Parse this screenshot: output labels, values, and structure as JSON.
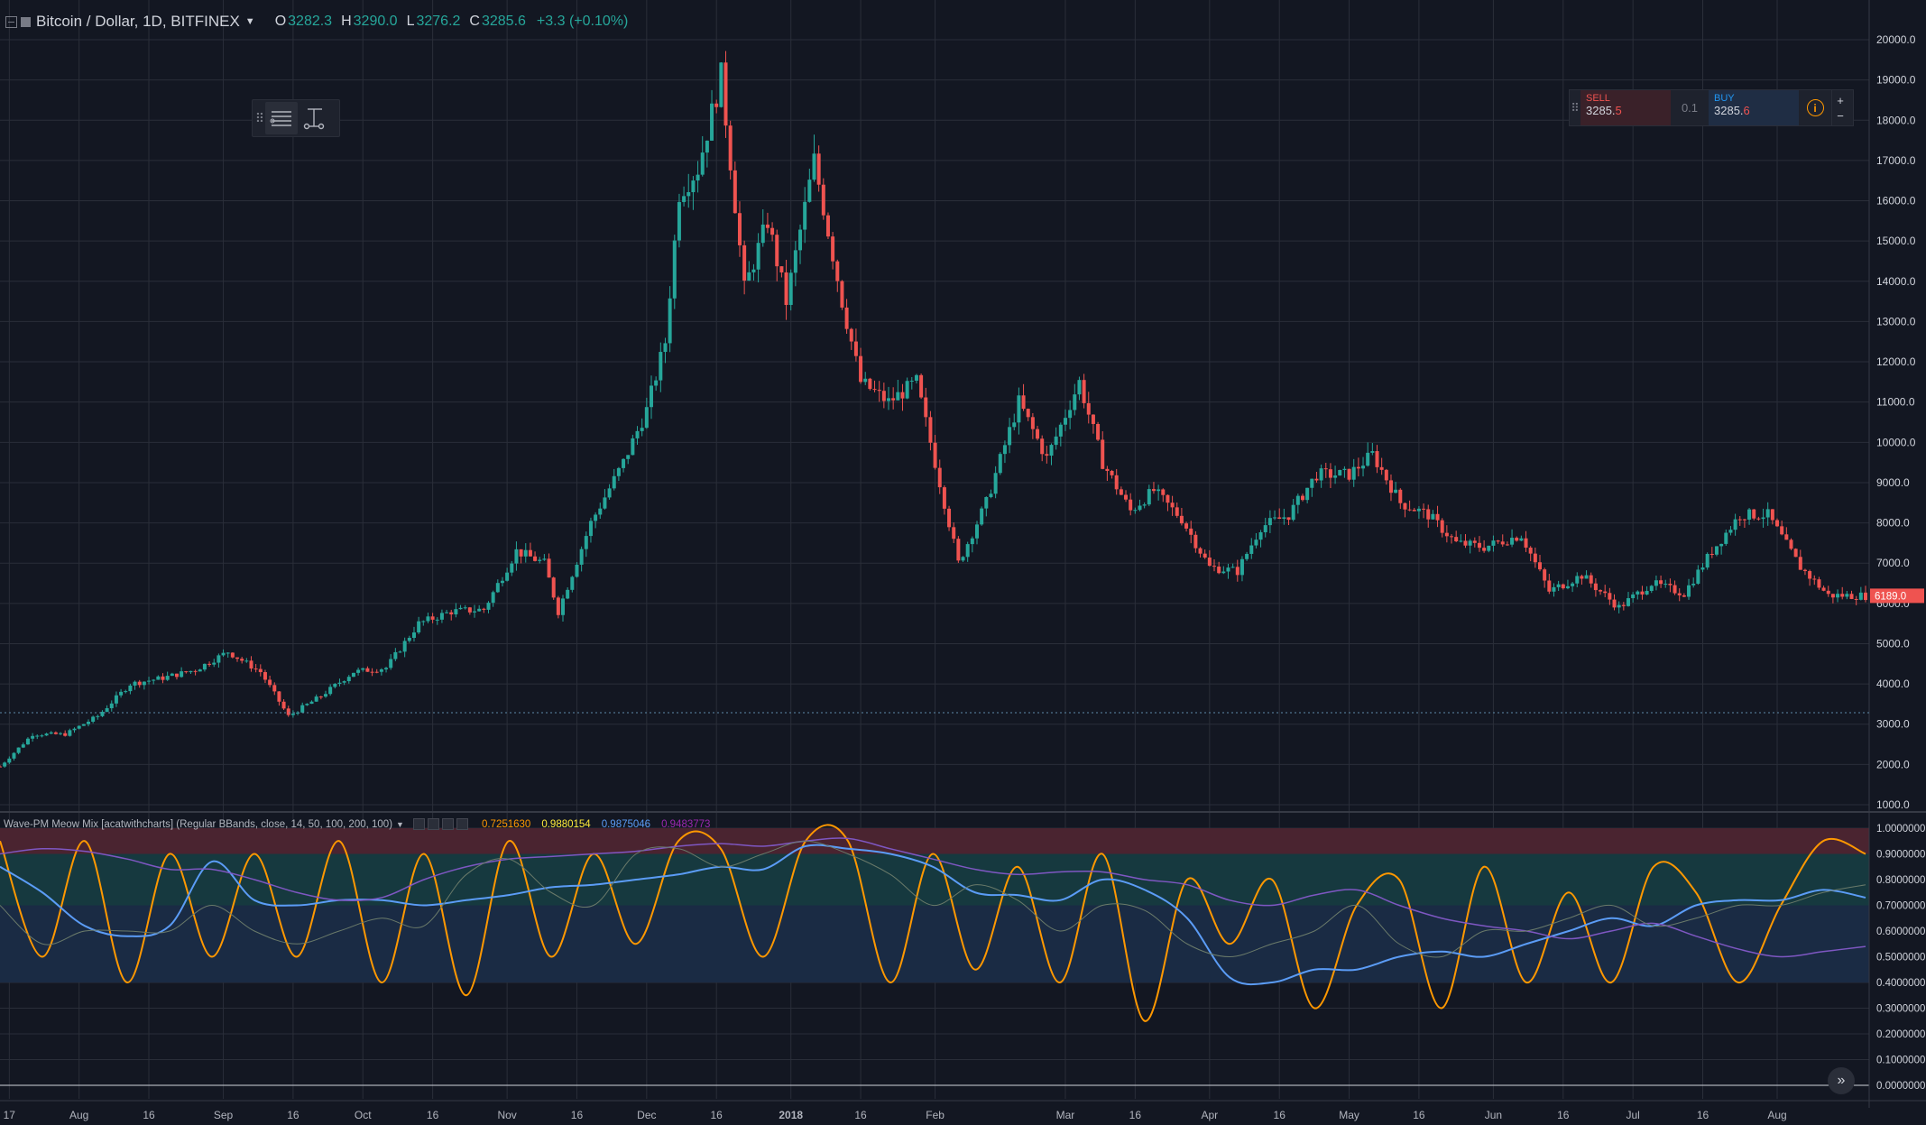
{
  "header": {
    "symbol": "Bitcoin / Dollar, 1D, BITFINEX",
    "open_label": "O",
    "open": "3282.3",
    "high_label": "H",
    "high": "3290.0",
    "low_label": "L",
    "low": "3276.2",
    "close_label": "C",
    "close": "3285.6",
    "change": "+3.3 (+0.10%)"
  },
  "toolbar": {
    "icons": [
      "drag-grip-icon",
      "horizontal-lines-icon",
      "measure-icon"
    ]
  },
  "trade_panel": {
    "sell_label": "SELL",
    "sell_price_main": "3285.",
    "sell_price_last": "5",
    "quantity": "0.1",
    "buy_label": "BUY",
    "buy_price_main": "3285.",
    "buy_price_last": "6",
    "plus": "+",
    "minus": "−"
  },
  "indicator": {
    "title": "Wave-PM Meow Mix [acatwithcharts] (Regular BBands, close, 14, 50, 100, 200, 100)",
    "values": [
      {
        "text": "0.7251630",
        "color": "#ff9800"
      },
      {
        "text": "0.9880154",
        "color": "#ffeb3b"
      },
      {
        "text": "0.9875046",
        "color": "#5b9cf6"
      },
      {
        "text": "0.9483773",
        "color": "#9c27b0"
      }
    ]
  },
  "price_axis_labels": [
    "20000.0",
    "19000.0",
    "18000.0",
    "17000.0",
    "16000.0",
    "15000.0",
    "14000.0",
    "13000.0",
    "12000.0",
    "11000.0",
    "10000.0",
    "9000.0",
    "8000.0",
    "7000.0",
    "6000.0",
    "5000.0",
    "4000.0",
    "3000.0",
    "2000.0",
    "1000.0"
  ],
  "indicator_axis_labels": [
    "1.0000000",
    "0.9000000",
    "0.8000000",
    "0.7000000",
    "0.6000000",
    "0.5000000",
    "0.4000000",
    "0.3000000",
    "0.2000000",
    "0.1000000",
    "0.0000000"
  ],
  "last_price_label": "6189.0",
  "time_labels": [
    {
      "t": "17",
      "bold": false
    },
    {
      "t": "Aug",
      "bold": false
    },
    {
      "t": "16",
      "bold": false
    },
    {
      "t": "Sep",
      "bold": false
    },
    {
      "t": "16",
      "bold": false
    },
    {
      "t": "Oct",
      "bold": false
    },
    {
      "t": "16",
      "bold": false
    },
    {
      "t": "Nov",
      "bold": false
    },
    {
      "t": "16",
      "bold": false
    },
    {
      "t": "Dec",
      "bold": false
    },
    {
      "t": "16",
      "bold": false
    },
    {
      "t": "2018",
      "bold": true
    },
    {
      "t": "16",
      "bold": false
    },
    {
      "t": "Feb",
      "bold": false
    },
    {
      "t": "Mar",
      "bold": false
    },
    {
      "t": "16",
      "bold": false
    },
    {
      "t": "Apr",
      "bold": false
    },
    {
      "t": "16",
      "bold": false
    },
    {
      "t": "May",
      "bold": false
    },
    {
      "t": "16",
      "bold": false
    },
    {
      "t": "Jun",
      "bold": false
    },
    {
      "t": "16",
      "bold": false
    },
    {
      "t": "Jul",
      "bold": false
    },
    {
      "t": "16",
      "bold": false
    },
    {
      "t": "Aug",
      "bold": false
    }
  ],
  "colors": {
    "background": "#131722",
    "grid": "#2a2e39",
    "up": "#26a69a",
    "down": "#ef5350",
    "orange": "#ff9800",
    "blue": "#5b9cf6",
    "purple": "#7e57c2",
    "gray": "#6a7a6a",
    "band_top": "#4a2430",
    "band_mid": "#16393f",
    "band_low": "#1a2b44"
  },
  "chart_data": [
    {
      "type": "candlestick",
      "title": "Bitcoin / Dollar, 1D, BITFINEX",
      "ylim": [
        1000,
        20000
      ],
      "x_range": [
        "2017-07-15",
        "2018-08-20"
      ],
      "closes": [
        [
          "2017-07-15",
          1950
        ],
        [
          "2017-07-22",
          2750
        ],
        [
          "2017-07-29",
          2750
        ],
        [
          "2017-08-05",
          3200
        ],
        [
          "2017-08-12",
          4000
        ],
        [
          "2017-08-19",
          4150
        ],
        [
          "2017-08-26",
          4350
        ],
        [
          "2017-09-02",
          4800
        ],
        [
          "2017-09-09",
          4300
        ],
        [
          "2017-09-15",
          3200
        ],
        [
          "2017-09-22",
          3700
        ],
        [
          "2017-09-29",
          4300
        ],
        [
          "2017-10-06",
          4400
        ],
        [
          "2017-10-13",
          5500
        ],
        [
          "2017-10-20",
          5800
        ],
        [
          "2017-10-27",
          5850
        ],
        [
          "2017-11-03",
          7300
        ],
        [
          "2017-11-09",
          7000
        ],
        [
          "2017-11-12",
          5800
        ],
        [
          "2017-11-19",
          8000
        ],
        [
          "2017-11-26",
          9500
        ],
        [
          "2017-12-01",
          10800
        ],
        [
          "2017-12-05",
          12500
        ],
        [
          "2017-12-08",
          16200
        ],
        [
          "2017-12-12",
          16800
        ],
        [
          "2017-12-17",
          19100
        ],
        [
          "2017-12-22",
          13800
        ],
        [
          "2017-12-27",
          15500
        ],
        [
          "2017-12-31",
          13500
        ],
        [
          "2018-01-06",
          17000
        ],
        [
          "2018-01-12",
          13500
        ],
        [
          "2018-01-16",
          11500
        ],
        [
          "2018-01-22",
          11000
        ],
        [
          "2018-01-28",
          11500
        ],
        [
          "2018-02-02",
          9000
        ],
        [
          "2018-02-06",
          7000
        ],
        [
          "2018-02-12",
          8500
        ],
        [
          "2018-02-19",
          11000
        ],
        [
          "2018-02-25",
          9600
        ],
        [
          "2018-03-04",
          11500
        ],
        [
          "2018-03-09",
          9500
        ],
        [
          "2018-03-15",
          8300
        ],
        [
          "2018-03-20",
          8800
        ],
        [
          "2018-03-26",
          8100
        ],
        [
          "2018-04-01",
          6900
        ],
        [
          "2018-04-07",
          6800
        ],
        [
          "2018-04-12",
          7900
        ],
        [
          "2018-04-18",
          8200
        ],
        [
          "2018-04-24",
          9200
        ],
        [
          "2018-05-01",
          9200
        ],
        [
          "2018-05-06",
          9700
        ],
        [
          "2018-05-12",
          8500
        ],
        [
          "2018-05-18",
          8200
        ],
        [
          "2018-05-24",
          7500
        ],
        [
          "2018-05-30",
          7400
        ],
        [
          "2018-06-07",
          7700
        ],
        [
          "2018-06-13",
          6300
        ],
        [
          "2018-06-20",
          6700
        ],
        [
          "2018-06-28",
          5900
        ],
        [
          "2018-07-05",
          6500
        ],
        [
          "2018-07-12",
          6250
        ],
        [
          "2018-07-18",
          7300
        ],
        [
          "2018-07-24",
          8200
        ],
        [
          "2018-07-30",
          8200
        ],
        [
          "2018-08-06",
          6900
        ],
        [
          "2018-08-12",
          6200
        ],
        [
          "2018-08-20",
          6189
        ]
      ]
    },
    {
      "type": "line",
      "title": "Wave-PM Meow Mix [acatwithcharts] (Regular BBands, close, 14, 50, 100, 200, 100)",
      "ylim": [
        0,
        1
      ],
      "series": [
        {
          "values": [
            0.95,
            0.5,
            0.95,
            0.4,
            0.9,
            0.5,
            0.9,
            0.5,
            0.95,
            0.4,
            0.9,
            0.35,
            0.95,
            0.5,
            0.9,
            0.55,
            0.95,
            0.92,
            0.5,
            0.95,
            0.95,
            0.4,
            0.9,
            0.45,
            0.85,
            0.4,
            0.9,
            0.25,
            0.8,
            0.55,
            0.8,
            0.3,
            0.7,
            0.8,
            0.3,
            0.85,
            0.4,
            0.75,
            0.4,
            0.85,
            0.75,
            0.4,
            0.7,
            0.95,
            0.9
          ]
        },
        {
          "values": [
            0.85,
            0.75,
            0.62,
            0.58,
            0.62,
            0.87,
            0.72,
            0.7,
            0.72,
            0.72,
            0.7,
            0.72,
            0.74,
            0.77,
            0.78,
            0.8,
            0.82,
            0.85,
            0.84,
            0.93,
            0.92,
            0.9,
            0.85,
            0.75,
            0.74,
            0.72,
            0.8,
            0.76,
            0.65,
            0.42,
            0.4,
            0.45,
            0.45,
            0.5,
            0.52,
            0.5,
            0.55,
            0.6,
            0.65,
            0.62,
            0.7,
            0.72,
            0.72,
            0.76,
            0.73
          ]
        },
        {
          "values": [
            0.9,
            0.92,
            0.91,
            0.88,
            0.84,
            0.84,
            0.8,
            0.75,
            0.72,
            0.73,
            0.8,
            0.85,
            0.88,
            0.89,
            0.9,
            0.91,
            0.93,
            0.94,
            0.93,
            0.95,
            0.96,
            0.92,
            0.88,
            0.84,
            0.82,
            0.83,
            0.83,
            0.8,
            0.78,
            0.72,
            0.7,
            0.74,
            0.76,
            0.7,
            0.65,
            0.62,
            0.6,
            0.57,
            0.6,
            0.63,
            0.58,
            0.53,
            0.5,
            0.52,
            0.54
          ]
        },
        {
          "values": [
            0.7,
            0.55,
            0.6,
            0.6,
            0.6,
            0.7,
            0.6,
            0.55,
            0.6,
            0.65,
            0.62,
            0.82,
            0.88,
            0.75,
            0.7,
            0.9,
            0.92,
            0.85,
            0.9,
            0.95,
            0.9,
            0.82,
            0.7,
            0.78,
            0.72,
            0.6,
            0.7,
            0.68,
            0.55,
            0.5,
            0.55,
            0.6,
            0.7,
            0.55,
            0.5,
            0.6,
            0.6,
            0.65,
            0.7,
            0.62,
            0.65,
            0.7,
            0.7,
            0.75,
            0.78
          ]
        }
      ]
    }
  ]
}
